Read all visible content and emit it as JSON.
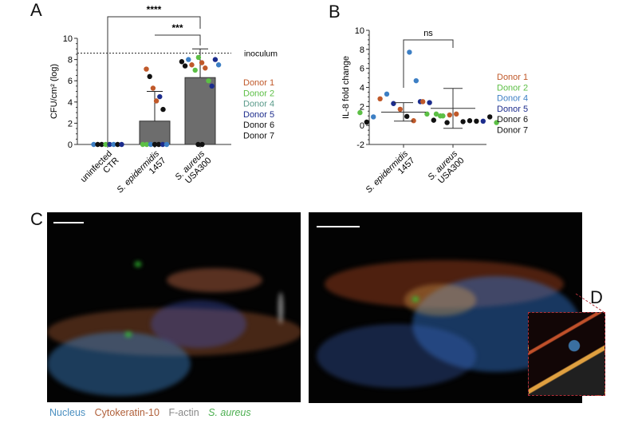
{
  "panels": {
    "a": "A",
    "b": "B",
    "c": "C",
    "d": "D"
  },
  "colors": {
    "donor1": "#c0592a",
    "donor2": "#5cbf45",
    "donor4": "#3d7fc4",
    "donor5": "#1c2c8c",
    "donor6": "#111111",
    "donor7": "#111111"
  },
  "chart_data": [
    {
      "type": "bar",
      "panel": "A",
      "ylabel": "CFU/cm² (log)",
      "ylim": [
        0,
        10
      ],
      "yticks": [
        0,
        2,
        4,
        6,
        8,
        10
      ],
      "categories": [
        "uninfected CTR",
        "S. epidermidis 1457",
        "S. aureus USA300"
      ],
      "bar_values": [
        0,
        2.2,
        6.3
      ],
      "error_upper": [
        0,
        5.0,
        9.0
      ],
      "reference_line": {
        "label": "inoculum",
        "value": 8.6
      },
      "significance": [
        {
          "from": 0,
          "to": 2,
          "label": "****"
        },
        {
          "from": 1,
          "to": 2,
          "label": "***"
        }
      ],
      "legend": [
        "Donor 1",
        "Donor 2",
        "Donor 4",
        "Donor 5",
        "Donor 6",
        "Donor 7"
      ],
      "points": [
        {
          "c": 0,
          "v": 0,
          "d": "donor4"
        },
        {
          "c": 0,
          "v": 0,
          "d": "donor6"
        },
        {
          "c": 0,
          "v": 0,
          "d": "donor6"
        },
        {
          "c": 0,
          "v": 0,
          "d": "donor2"
        },
        {
          "c": 0,
          "v": 0,
          "d": "donor5"
        },
        {
          "c": 0,
          "v": 0,
          "d": "donor4"
        },
        {
          "c": 0,
          "v": 0,
          "d": "donor6"
        },
        {
          "c": 0,
          "v": 0,
          "d": "donor5"
        },
        {
          "c": 1,
          "v": 0,
          "d": "donor2"
        },
        {
          "c": 1,
          "v": 0,
          "d": "donor2"
        },
        {
          "c": 1,
          "v": 0,
          "d": "donor4"
        },
        {
          "c": 1,
          "v": 0,
          "d": "donor6"
        },
        {
          "c": 1,
          "v": 0,
          "d": "donor6"
        },
        {
          "c": 1,
          "v": 0,
          "d": "donor5"
        },
        {
          "c": 1,
          "v": 0,
          "d": "donor4"
        },
        {
          "c": 1,
          "v": 7.1,
          "d": "donor1"
        },
        {
          "c": 1,
          "v": 6.4,
          "d": "donor6"
        },
        {
          "c": 1,
          "v": 5.3,
          "d": "donor1"
        },
        {
          "c": 1,
          "v": 4.1,
          "d": "donor1"
        },
        {
          "c": 1,
          "v": 4.5,
          "d": "donor5"
        },
        {
          "c": 1,
          "v": 3.3,
          "d": "donor6"
        },
        {
          "c": 2,
          "v": 7.8,
          "d": "donor6"
        },
        {
          "c": 2,
          "v": 7.4,
          "d": "donor6"
        },
        {
          "c": 2,
          "v": 8.0,
          "d": "donor4"
        },
        {
          "c": 2,
          "v": 7.5,
          "d": "donor1"
        },
        {
          "c": 2,
          "v": 7.0,
          "d": "donor2"
        },
        {
          "c": 2,
          "v": 8.2,
          "d": "donor2"
        },
        {
          "c": 2,
          "v": 7.7,
          "d": "donor1"
        },
        {
          "c": 2,
          "v": 7.2,
          "d": "donor1"
        },
        {
          "c": 2,
          "v": 6.0,
          "d": "donor2"
        },
        {
          "c": 2,
          "v": 5.5,
          "d": "donor5"
        },
        {
          "c": 2,
          "v": 8.0,
          "d": "donor5"
        },
        {
          "c": 2,
          "v": 7.5,
          "d": "donor4"
        },
        {
          "c": 2,
          "v": 0,
          "d": "donor6"
        },
        {
          "c": 2,
          "v": 0,
          "d": "donor6"
        }
      ]
    },
    {
      "type": "scatter",
      "panel": "B",
      "ylabel": "IL-8 fold change",
      "ylim": [
        -2,
        10
      ],
      "yticks": [
        -2,
        0,
        2,
        4,
        6,
        8,
        10
      ],
      "categories": [
        "S. epidermidis 1457",
        "S. aureus USA300"
      ],
      "means": [
        1.4,
        1.8
      ],
      "sd_low": [
        0.45,
        -0.3
      ],
      "sd_high": [
        2.4,
        3.9
      ],
      "significance": [
        {
          "from": 0,
          "to": 1,
          "label": "ns"
        }
      ],
      "legend": [
        "Donor 1",
        "Donor 2",
        "Donor 4",
        "Donor 5",
        "Donor 6",
        "Donor 7"
      ],
      "points": [
        {
          "c": 0,
          "v": 1.35,
          "d": "donor2"
        },
        {
          "c": 0,
          "v": 0.35,
          "d": "donor6"
        },
        {
          "c": 0,
          "v": 0.9,
          "d": "donor4"
        },
        {
          "c": 0,
          "v": 2.8,
          "d": "donor1"
        },
        {
          "c": 0,
          "v": 3.3,
          "d": "donor4"
        },
        {
          "c": 0,
          "v": 2.3,
          "d": "donor5"
        },
        {
          "c": 0,
          "v": 1.7,
          "d": "donor1"
        },
        {
          "c": 0,
          "v": 0.95,
          "d": "donor6"
        },
        {
          "c": 0,
          "v": 0.5,
          "d": "donor1"
        },
        {
          "c": 0,
          "v": 2.5,
          "d": "donor5"
        },
        {
          "c": 0,
          "v": 1.2,
          "d": "donor2"
        },
        {
          "c": 0,
          "v": 0.55,
          "d": "donor6"
        },
        {
          "c": 0,
          "v": 1.0,
          "d": "donor2"
        },
        {
          "c": 0,
          "v": 0.3,
          "d": "donor6"
        },
        {
          "c": 1,
          "v": 7.7,
          "d": "donor4"
        },
        {
          "c": 1,
          "v": 4.7,
          "d": "donor4"
        },
        {
          "c": 1,
          "v": 2.5,
          "d": "donor1"
        },
        {
          "c": 1,
          "v": 2.4,
          "d": "donor5"
        },
        {
          "c": 1,
          "v": 1.2,
          "d": "donor2"
        },
        {
          "c": 1,
          "v": 1.0,
          "d": "donor2"
        },
        {
          "c": 1,
          "v": 1.1,
          "d": "donor1"
        },
        {
          "c": 1,
          "v": 1.2,
          "d": "donor1"
        },
        {
          "c": 1,
          "v": 0.4,
          "d": "donor6"
        },
        {
          "c": 1,
          "v": 0.5,
          "d": "donor6"
        },
        {
          "c": 1,
          "v": 0.45,
          "d": "donor6"
        },
        {
          "c": 1,
          "v": 0.45,
          "d": "donor5"
        },
        {
          "c": 1,
          "v": 0.9,
          "d": "donor6"
        },
        {
          "c": 1,
          "v": 0.3,
          "d": "donor2"
        }
      ]
    }
  ],
  "image_legend": [
    {
      "label": "Nucleus",
      "color": "#4a8fc0"
    },
    {
      "label": "Cytokeratin-10",
      "color": "#b0603a"
    },
    {
      "label": "F-actin",
      "color": "#888888"
    },
    {
      "label": "S. aureus",
      "color": "#4caf50",
      "italic": true
    }
  ]
}
